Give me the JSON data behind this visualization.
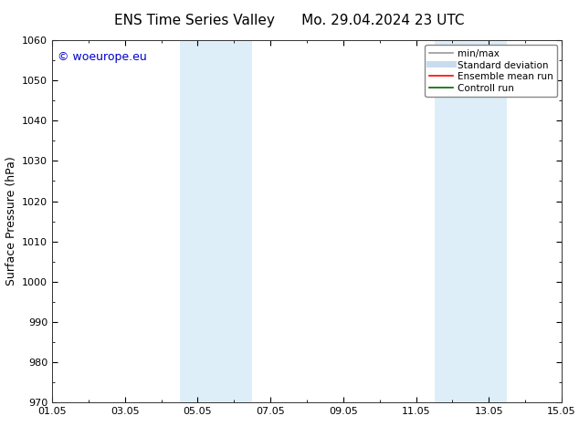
{
  "title_left": "ENS Time Series Valley",
  "title_right": "Mo. 29.04.2024 23 UTC",
  "ylabel": "Surface Pressure (hPa)",
  "ylim": [
    970,
    1060
  ],
  "yticks": [
    970,
    980,
    990,
    1000,
    1010,
    1020,
    1030,
    1040,
    1050,
    1060
  ],
  "xlim_start": 0.0,
  "xlim_end": 14.0,
  "xtick_labels": [
    "01.05",
    "03.05",
    "05.05",
    "07.05",
    "09.05",
    "11.05",
    "13.05",
    "15.05"
  ],
  "xtick_positions": [
    0.0,
    2.0,
    4.0,
    6.0,
    8.0,
    10.0,
    12.0,
    14.0
  ],
  "shaded_bands": [
    {
      "x_start": 3.5,
      "x_end": 5.5
    },
    {
      "x_start": 10.5,
      "x_end": 12.5
    }
  ],
  "shade_color": "#ddeef8",
  "watermark_text": "© woeurope.eu",
  "watermark_color": "#0000cc",
  "watermark_fontsize": 9,
  "legend_entries": [
    {
      "label": "min/max",
      "color": "#999999",
      "lw": 1.2,
      "style": "solid"
    },
    {
      "label": "Standard deviation",
      "color": "#c8dced",
      "lw": 5,
      "style": "solid"
    },
    {
      "label": "Ensemble mean run",
      "color": "#ff0000",
      "lw": 1.2,
      "style": "solid"
    },
    {
      "label": "Controll run",
      "color": "#006600",
      "lw": 1.2,
      "style": "solid"
    }
  ],
  "title_fontsize": 11,
  "axis_fontsize": 9,
  "tick_fontsize": 8,
  "bg_color": "#ffffff",
  "plot_bg_color": "#ffffff"
}
